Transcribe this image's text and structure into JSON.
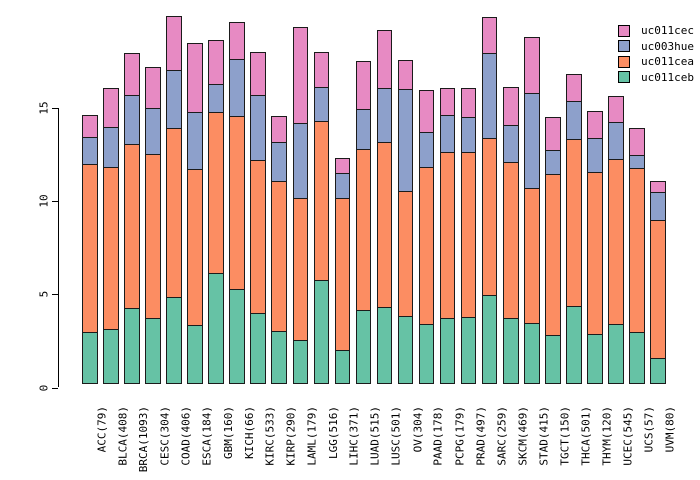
{
  "chart_data": {
    "type": "bar",
    "subtype": "stacked-vertical",
    "title": "",
    "xlabel": "",
    "ylabel": "",
    "grid": false,
    "background": "#ffffff",
    "ylim": [
      0,
      20
    ],
    "yticks": [
      0,
      5,
      10,
      15
    ],
    "legend_position": "top-right",
    "legend_order_top_to_bottom": [
      "uc011cec",
      "uc003hue",
      "uc011cea",
      "uc011ceb"
    ],
    "categories": [
      "ACC(79)",
      "BLCA(408)",
      "BRCA(1093)",
      "CESC(304)",
      "COAD(406)",
      "ESCA(184)",
      "GBM(160)",
      "KICH(66)",
      "KIRC(533)",
      "KIRP(290)",
      "LAML(179)",
      "LGG(516)",
      "LIHC(371)",
      "LUAD(515)",
      "LUSC(501)",
      "OV(304)",
      "PAAD(178)",
      "PCPG(179)",
      "PRAD(497)",
      "SARC(259)",
      "SKCM(469)",
      "STAD(415)",
      "TGCT(150)",
      "THCA(501)",
      "THYM(120)",
      "UCEC(545)",
      "UCS(57)",
      "UVM(80)"
    ],
    "series": [
      {
        "name": "uc011ceb",
        "color": "#66C2A5",
        "values": [
          2.8,
          3.0,
          4.1,
          3.55,
          4.7,
          3.2,
          6.0,
          5.1,
          3.85,
          2.85,
          2.4,
          5.6,
          1.85,
          4.0,
          4.15,
          3.65,
          3.25,
          3.55,
          3.6,
          4.8,
          3.55,
          3.3,
          2.65,
          4.2,
          2.7,
          3.25,
          2.8,
          1.4
        ]
      },
      {
        "name": "uc011cea",
        "color": "#FC8D62",
        "values": [
          9.1,
          8.75,
          8.85,
          8.85,
          9.1,
          8.4,
          8.7,
          9.35,
          8.25,
          8.15,
          7.65,
          8.6,
          8.2,
          8.7,
          8.9,
          6.8,
          8.5,
          9.0,
          8.95,
          8.5,
          8.45,
          7.3,
          8.7,
          9.05,
          8.75,
          8.9,
          8.85,
          7.5
        ]
      },
      {
        "name": "uc003hue",
        "color": "#8DA0CB",
        "values": [
          1.5,
          2.2,
          2.7,
          2.55,
          3.2,
          3.15,
          1.55,
          3.15,
          3.55,
          2.1,
          4.1,
          1.9,
          1.4,
          2.2,
          2.95,
          5.5,
          1.9,
          2.0,
          1.9,
          4.6,
          2.05,
          5.15,
          1.35,
          2.05,
          1.9,
          2.05,
          0.8,
          1.55
        ]
      },
      {
        "name": "uc011cec",
        "color": "#E78AC3",
        "values": [
          1.25,
          2.15,
          2.3,
          2.25,
          2.95,
          3.75,
          2.4,
          2.0,
          2.35,
          1.5,
          5.2,
          1.9,
          0.85,
          2.6,
          3.2,
          1.65,
          2.3,
          1.55,
          1.6,
          2.0,
          2.1,
          3.05,
          1.8,
          1.55,
          1.5,
          1.45,
          1.5,
          0.65
        ]
      }
    ]
  }
}
